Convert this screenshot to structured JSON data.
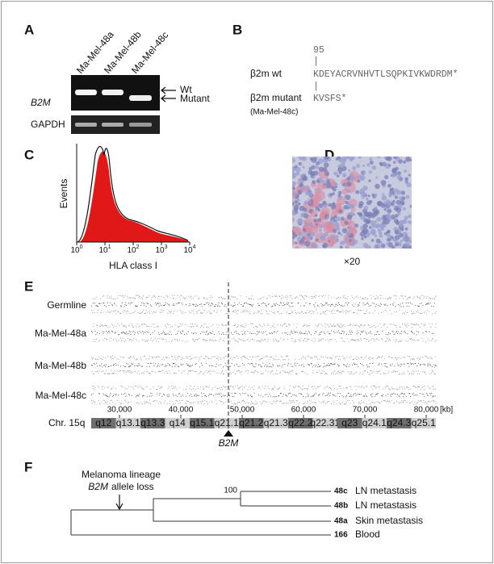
{
  "panels": {
    "A": {
      "label": "A",
      "lanes": [
        "Ma-Mel-48a",
        "Ma-Mel-48b",
        "Ma-Mel-48c"
      ],
      "bands": [
        "Wt",
        "Mutant"
      ],
      "gene": "B2M",
      "control": "GAPDH"
    },
    "B": {
      "label": "B",
      "position": "95",
      "marker": "|",
      "rows": [
        {
          "name": "β2m wt",
          "sequence": "KDEYACRVNHVTLSQPKIVKWDRDM*"
        },
        {
          "name": "β2m mutant",
          "sequence": "KVSFS*",
          "note": "(Ma-Mel-48c)"
        }
      ]
    },
    "C": {
      "label": "C",
      "ylabel": "Events",
      "xlabel": "HLA class I",
      "xticks": [
        {
          "base": "10",
          "exp": "0"
        },
        {
          "base": "10",
          "exp": "1"
        },
        {
          "base": "10",
          "exp": "2"
        },
        {
          "base": "10",
          "exp": "3"
        },
        {
          "base": "10",
          "exp": "4"
        }
      ]
    },
    "D": {
      "label": "D",
      "magnification": "×20"
    },
    "E": {
      "label": "E",
      "rows": [
        "Germline",
        "Ma-Mel-48a",
        "Ma-Mel-48b",
        "Ma-Mel-48c"
      ],
      "xticks": [
        "30,000",
        "40,000",
        "50,000",
        "60,000",
        "70,000",
        "80,000"
      ],
      "unit": "[kb]",
      "chromosome": "Chr. 15q",
      "gene": "B2M",
      "bands": [
        "q12",
        "q13.1",
        "q13.3",
        "q14",
        "q15.1",
        "q21.1",
        "q21.2",
        "q21.3",
        "q22.2",
        "q22.31",
        "q23",
        "q24.1",
        "q24.3",
        "q25.1"
      ]
    },
    "F": {
      "label": "F",
      "annotation": {
        "line1": "Melanoma lineage",
        "gene": "B2M",
        "text": "allele loss"
      },
      "bootstrap": "100",
      "leaves": [
        {
          "id": "48c",
          "site": "LN metastasis"
        },
        {
          "id": "48b",
          "site": "LN metastasis"
        },
        {
          "id": "48a",
          "site": "Skin metastasis"
        },
        {
          "id": "166",
          "site": "Blood"
        }
      ]
    }
  }
}
